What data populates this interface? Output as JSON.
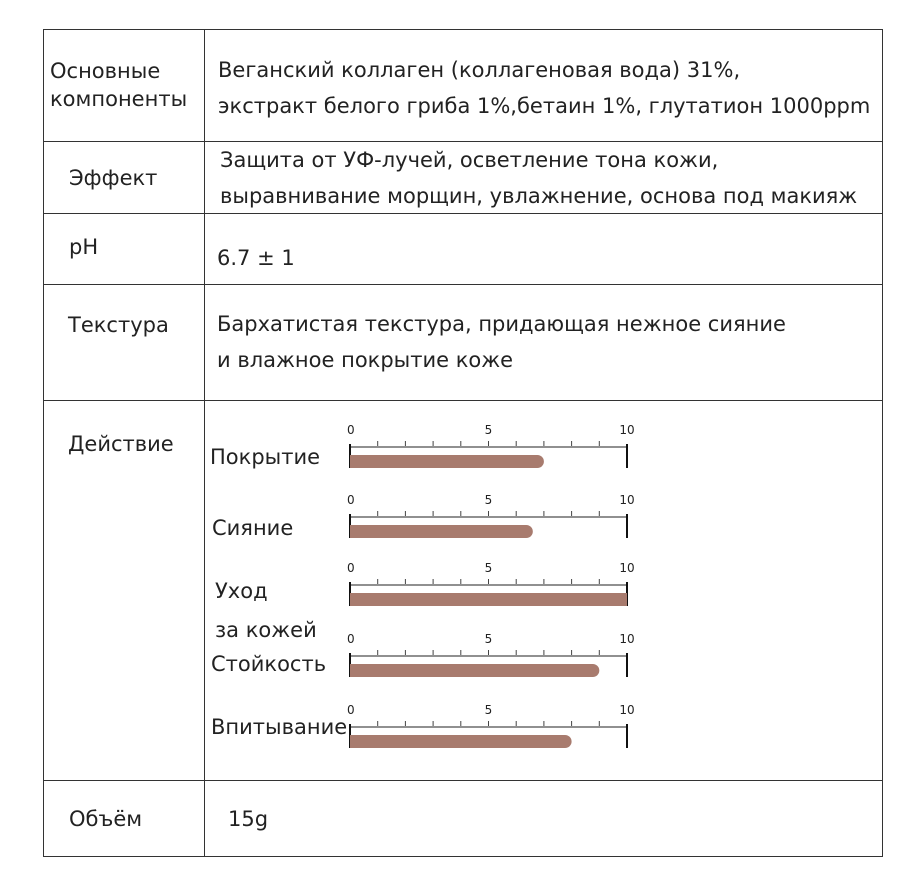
{
  "rows": {
    "components": {
      "label_lines": [
        "Основные",
        "компоненты"
      ],
      "value_lines": [
        "Веганский коллаген (коллагеновая вода) 31%,",
        "экстракт белого гриба 1%,бетаин 1%, глутатион 1000ppm"
      ]
    },
    "effect": {
      "label": "Эффект",
      "value_lines": [
        "Защита от УФ-лучей, осветление тона кожи,",
        "выравнивание морщин, увлажнение, основа под макияж"
      ]
    },
    "ph": {
      "label": "pH",
      "value": "6.7 ± 1"
    },
    "texture": {
      "label": "Текстура",
      "value_lines": [
        "Бархатистая текстура, придающая нежное сияние",
        "и влажное покрытие коже"
      ]
    },
    "action": {
      "label": "Действие"
    },
    "volume": {
      "label": "Объём",
      "value": "15g"
    }
  },
  "chart_data": {
    "type": "bar",
    "xlim": [
      0,
      10
    ],
    "tick_labels": [
      "0",
      "5",
      "10"
    ],
    "categories": [
      "Покрытие",
      "Сияние",
      "Уход за кожей",
      "Стойкость",
      "Впитывание"
    ],
    "category_lines": [
      [
        "Покрытие"
      ],
      [
        "Сияние"
      ],
      [
        "Уход",
        "за кожей"
      ],
      [
        "Стойкость"
      ],
      [
        "Впитывание"
      ]
    ],
    "values": [
      7,
      6.6,
      10,
      9,
      8
    ],
    "bar_color": "#a87b6e"
  }
}
